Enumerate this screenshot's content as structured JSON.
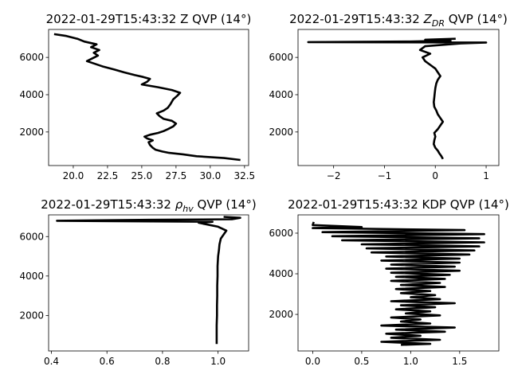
{
  "chart_data": [
    {
      "type": "line",
      "title": "2022-01-29T15:43:32 Z QVP (14°)",
      "xlabel": "",
      "ylabel": "",
      "xlim": [
        18.2,
        32.8
      ],
      "ylim": [
        200,
        7500
      ],
      "xticks": [
        20,
        22.5,
        25,
        27.5,
        30,
        32.5
      ],
      "xtick_labels": [
        "20.0",
        "22.5",
        "25.0",
        "27.5",
        "30.0",
        "32.5"
      ],
      "yticks": [
        2000,
        4000,
        6000
      ],
      "ytick_labels": [
        "2000",
        "4000",
        "6000"
      ],
      "grid": false,
      "series": [
        {
          "color": "#000000",
          "points": [
            [
              32.2,
              500
            ],
            [
              31.0,
              600
            ],
            [
              29.0,
              700
            ],
            [
              28.0,
              800
            ],
            [
              27.0,
              880
            ],
            [
              26.5,
              950
            ],
            [
              26.0,
              1050
            ],
            [
              25.8,
              1150
            ],
            [
              25.6,
              1300
            ],
            [
              25.5,
              1450
            ],
            [
              25.8,
              1550
            ],
            [
              25.4,
              1650
            ],
            [
              25.2,
              1750
            ],
            [
              25.6,
              1850
            ],
            [
              26.2,
              1950
            ],
            [
              26.6,
              2050
            ],
            [
              26.9,
              2150
            ],
            [
              27.3,
              2300
            ],
            [
              27.5,
              2450
            ],
            [
              27.2,
              2600
            ],
            [
              26.6,
              2700
            ],
            [
              26.3,
              2850
            ],
            [
              26.1,
              3000
            ],
            [
              26.6,
              3150
            ],
            [
              26.9,
              3300
            ],
            [
              27.1,
              3500
            ],
            [
              27.3,
              3750
            ],
            [
              27.6,
              3950
            ],
            [
              27.8,
              4100
            ],
            [
              27.2,
              4250
            ],
            [
              26.2,
              4400
            ],
            [
              25.0,
              4550
            ],
            [
              25.4,
              4700
            ],
            [
              25.6,
              4850
            ],
            [
              25.1,
              4950
            ],
            [
              24.5,
              5050
            ],
            [
              23.7,
              5200
            ],
            [
              23.0,
              5350
            ],
            [
              22.2,
              5500
            ],
            [
              21.6,
              5650
            ],
            [
              21.0,
              5800
            ],
            [
              21.4,
              5950
            ],
            [
              21.8,
              6100
            ],
            [
              21.5,
              6250
            ],
            [
              21.9,
              6400
            ],
            [
              21.3,
              6550
            ],
            [
              21.7,
              6700
            ],
            [
              20.8,
              6850
            ],
            [
              20.3,
              7000
            ],
            [
              19.5,
              7150
            ],
            [
              18.6,
              7250
            ]
          ]
        }
      ]
    },
    {
      "type": "line",
      "title": "2022-01-29T15:43:32 Z_DR QVP (14°)",
      "title_prefix": "2022-01-29T15:43:32 ",
      "title_symbol": "Z",
      "title_symbol_sub": "DR",
      "title_suffix": " QVP (14°)",
      "xlabel": "",
      "ylabel": "",
      "xlim": [
        -2.7,
        1.25
      ],
      "ylim": [
        200,
        7500
      ],
      "xticks": [
        -2,
        -1,
        0,
        1
      ],
      "xtick_labels": [
        "−2",
        "−1",
        "0",
        "1"
      ],
      "yticks": [
        2000,
        4000,
        6000
      ],
      "ytick_labels": [
        "2000",
        "4000",
        "6000"
      ],
      "grid": false,
      "series": [
        {
          "color": "#000000",
          "points": [
            [
              0.15,
              550
            ],
            [
              0.12,
              700
            ],
            [
              0.08,
              850
            ],
            [
              0.05,
              1000
            ],
            [
              0.0,
              1150
            ],
            [
              -0.03,
              1350
            ],
            [
              -0.02,
              1550
            ],
            [
              0.0,
              1750
            ],
            [
              -0.02,
              1950
            ],
            [
              0.05,
              2150
            ],
            [
              0.1,
              2350
            ],
            [
              0.15,
              2550
            ],
            [
              0.1,
              2750
            ],
            [
              0.05,
              2950
            ],
            [
              0.02,
              3150
            ],
            [
              -0.02,
              3350
            ],
            [
              -0.03,
              3600
            ],
            [
              -0.02,
              3850
            ],
            [
              -0.01,
              4100
            ],
            [
              0.0,
              4350
            ],
            [
              0.02,
              4600
            ],
            [
              0.05,
              4800
            ],
            [
              0.1,
              5000
            ],
            [
              0.05,
              5200
            ],
            [
              0.0,
              5400
            ],
            [
              -0.1,
              5600
            ],
            [
              -0.2,
              5800
            ],
            [
              -0.25,
              6000
            ],
            [
              -0.1,
              6200
            ],
            [
              -0.3,
              6400
            ],
            [
              -0.2,
              6600
            ],
            [
              0.5,
              6750
            ],
            [
              1.0,
              6800
            ],
            [
              -2.5,
              6820
            ],
            [
              -0.5,
              6850
            ],
            [
              0.3,
              6900
            ],
            [
              -0.2,
              6950
            ],
            [
              0.4,
              7000
            ]
          ]
        }
      ]
    },
    {
      "type": "line",
      "title": "2022-01-29T15:43:32 ρhv QVP (14°)",
      "title_prefix": "2022-01-29T15:43:32 ",
      "title_symbol": "ρ",
      "title_symbol_sub": "hv",
      "title_suffix": " QVP (14°)",
      "xlabel": "",
      "ylabel": "",
      "xlim": [
        0.39,
        1.11
      ],
      "ylim": [
        200,
        7100
      ],
      "xticks": [
        0.4,
        0.6,
        0.8,
        1.0
      ],
      "xtick_labels": [
        "0.4",
        "0.6",
        "0.8",
        "1.0"
      ],
      "yticks": [
        2000,
        4000,
        6000
      ],
      "ytick_labels": [
        "2000",
        "4000",
        "6000"
      ],
      "grid": false,
      "series": [
        {
          "color": "#000000",
          "points": [
            [
              0.995,
              550
            ],
            [
              0.995,
              1000
            ],
            [
              0.995,
              1500
            ],
            [
              0.996,
              2000
            ],
            [
              0.996,
              2500
            ],
            [
              0.997,
              3000
            ],
            [
              0.997,
              3500
            ],
            [
              0.998,
              4000
            ],
            [
              0.998,
              4500
            ],
            [
              1.0,
              5000
            ],
            [
              1.003,
              5300
            ],
            [
              1.005,
              5600
            ],
            [
              1.01,
              5900
            ],
            [
              1.02,
              6100
            ],
            [
              1.03,
              6300
            ],
            [
              1.0,
              6500
            ],
            [
              0.93,
              6700
            ],
            [
              0.98,
              6750
            ],
            [
              0.42,
              6800
            ],
            [
              0.75,
              6850
            ],
            [
              1.05,
              6880
            ],
            [
              1.08,
              6950
            ],
            [
              1.02,
              7000
            ]
          ]
        }
      ]
    },
    {
      "type": "line",
      "title": "2022-01-29T15:43:32 KDP QVP (14°)",
      "xlabel": "",
      "ylabel": "",
      "xlim": [
        -0.15,
        1.9
      ],
      "ylim": [
        200,
        6900
      ],
      "xticks": [
        0,
        0.5,
        1,
        1.5
      ],
      "xtick_labels": [
        "0.0",
        "0.5",
        "1.0",
        "1.5"
      ],
      "yticks": [
        2000,
        4000,
        6000
      ],
      "ytick_labels": [
        "2000",
        "4000",
        "6000"
      ],
      "grid": false,
      "series": [
        {
          "color": "#000000",
          "points": [
            [
              0.9,
              500
            ],
            [
              1.2,
              550
            ],
            [
              0.7,
              650
            ],
            [
              1.3,
              750
            ],
            [
              0.8,
              850
            ],
            [
              1.1,
              950
            ],
            [
              0.75,
              1050
            ],
            [
              1.35,
              1150
            ],
            [
              0.85,
              1250
            ],
            [
              1.45,
              1350
            ],
            [
              0.7,
              1450
            ],
            [
              1.2,
              1550
            ],
            [
              0.9,
              1650
            ],
            [
              1.1,
              1750
            ],
            [
              0.8,
              1850
            ],
            [
              1.3,
              1950
            ],
            [
              0.95,
              2050
            ],
            [
              1.2,
              2150
            ],
            [
              0.85,
              2250
            ],
            [
              1.25,
              2350
            ],
            [
              0.9,
              2450
            ],
            [
              1.45,
              2550
            ],
            [
              0.8,
              2650
            ],
            [
              1.3,
              2750
            ],
            [
              1.0,
              2850
            ],
            [
              1.25,
              2950
            ],
            [
              0.9,
              3050
            ],
            [
              1.2,
              3150
            ],
            [
              0.85,
              3250
            ],
            [
              1.35,
              3350
            ],
            [
              0.9,
              3450
            ],
            [
              1.3,
              3550
            ],
            [
              0.8,
              3650
            ],
            [
              1.35,
              3750
            ],
            [
              0.85,
              3850
            ],
            [
              1.4,
              3950
            ],
            [
              0.8,
              4050
            ],
            [
              1.5,
              4150
            ],
            [
              0.75,
              4250
            ],
            [
              1.45,
              4350
            ],
            [
              0.8,
              4450
            ],
            [
              1.5,
              4550
            ],
            [
              0.7,
              4650
            ],
            [
              1.5,
              4750
            ],
            [
              0.75,
              4850
            ],
            [
              1.6,
              4950
            ],
            [
              0.6,
              5050
            ],
            [
              1.65,
              5150
            ],
            [
              0.55,
              5250
            ],
            [
              1.7,
              5350
            ],
            [
              0.5,
              5450
            ],
            [
              1.75,
              5550
            ],
            [
              0.3,
              5650
            ],
            [
              1.7,
              5750
            ],
            [
              0.2,
              5850
            ],
            [
              1.75,
              5950
            ],
            [
              0.1,
              6050
            ],
            [
              1.55,
              6150
            ],
            [
              0.0,
              6250
            ],
            [
              0.5,
              6300
            ],
            [
              0.0,
              6400
            ],
            [
              0.01,
              6550
            ]
          ]
        }
      ]
    }
  ]
}
